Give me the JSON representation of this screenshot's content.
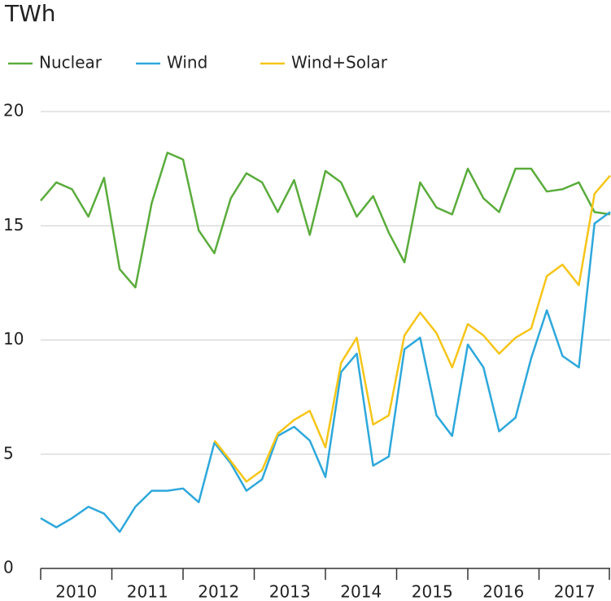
{
  "chart_data": {
    "type": "line",
    "title": "TWh",
    "x": [
      2010,
      2010.22,
      2010.44,
      2010.67,
      2010.89,
      2011.11,
      2011.33,
      2011.56,
      2011.78,
      2012,
      2012.22,
      2012.44,
      2012.67,
      2012.89,
      2013.11,
      2013.33,
      2013.56,
      2013.78,
      2014,
      2014.22,
      2014.44,
      2014.67,
      2014.89,
      2015.11,
      2015.33,
      2015.56,
      2015.78,
      2016,
      2016.22,
      2016.44,
      2016.67,
      2016.89,
      2017.11,
      2017.33,
      2017.56,
      2017.78,
      2018
    ],
    "series": [
      {
        "name": "Nuclear",
        "color": "#5aac3c",
        "values": [
          16.1,
          16.9,
          16.6,
          15.4,
          17.1,
          13.1,
          12.3,
          16.0,
          18.2,
          17.9,
          14.8,
          13.8,
          16.2,
          17.3,
          16.9,
          15.6,
          17.0,
          14.6,
          17.4,
          16.9,
          15.4,
          16.3,
          14.7,
          13.4,
          16.9,
          15.8,
          15.5,
          17.5,
          16.2,
          15.6,
          17.5,
          17.5,
          16.5,
          16.6,
          16.9,
          15.6,
          15.5
        ]
      },
      {
        "name": "Wind",
        "color": "#2ea8db",
        "values": [
          2.2,
          1.8,
          2.2,
          2.7,
          2.4,
          1.6,
          2.7,
          3.4,
          3.4,
          3.5,
          2.9,
          5.5,
          4.6,
          3.4,
          3.9,
          5.8,
          6.2,
          5.6,
          4.0,
          8.6,
          9.4,
          4.5,
          4.9,
          9.6,
          10.1,
          6.7,
          5.8,
          9.8,
          8.8,
          6.0,
          6.6,
          9.2,
          11.3,
          9.3,
          8.8,
          15.1,
          15.6
        ]
      },
      {
        "name": "Wind+Solar",
        "color": "#f5c518",
        "values": [
          null,
          null,
          null,
          null,
          null,
          null,
          null,
          null,
          null,
          null,
          null,
          5.6,
          4.7,
          3.8,
          4.3,
          5.9,
          6.5,
          6.9,
          5.3,
          9.0,
          10.1,
          6.3,
          6.7,
          10.2,
          11.2,
          10.3,
          8.8,
          10.7,
          10.2,
          9.4,
          10.1,
          10.5,
          12.8,
          13.3,
          12.4,
          16.4,
          17.2
        ]
      }
    ],
    "xlim": [
      2010,
      2018
    ],
    "xticks": [
      2010,
      2011,
      2012,
      2013,
      2014,
      2015,
      2016,
      2017
    ],
    "ylim": [
      0,
      20
    ],
    "yticks": [
      0,
      5,
      10,
      15,
      20
    ],
    "grid": true
  }
}
